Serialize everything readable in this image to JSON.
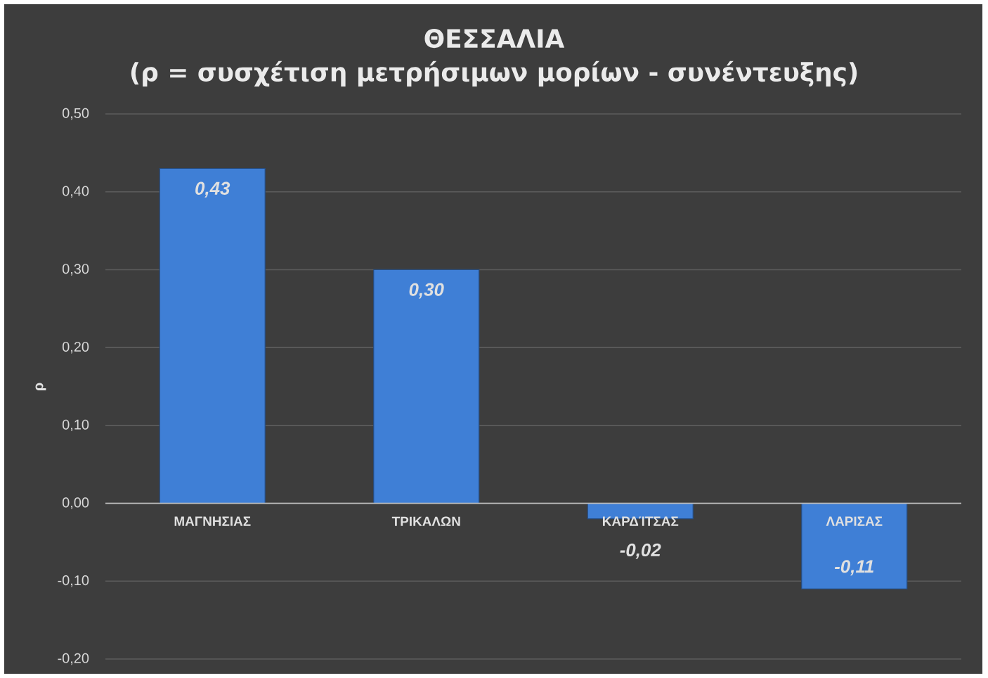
{
  "chart_data": {
    "type": "bar",
    "title": "ΘΕΣΣΑΛΙΑ",
    "subtitle": "(ρ = συσχέτιση μετρήσιμων μορίων - συνέντευξης)",
    "ylabel": "ρ",
    "categories": [
      "ΜΑΓΝΗΣΙΑΣ",
      "ΤΡΙΚΑΛΩΝ",
      "ΚΑΡΔΊΤΣΑΣ",
      "ΛΑΡΙΣΑΣ"
    ],
    "values": [
      0.43,
      0.3,
      -0.02,
      -0.11
    ],
    "value_labels": [
      "0,43",
      "0,30",
      "-0,02",
      "-0,11"
    ],
    "color": "#3f7fd6",
    "ylim": [
      -0.2,
      0.5
    ],
    "yticks": [
      {
        "value": -0.2,
        "label": "-0,20"
      },
      {
        "value": -0.1,
        "label": "-0,10"
      },
      {
        "value": 0,
        "label": "0,00"
      },
      {
        "value": 0.1,
        "label": "0,10"
      },
      {
        "value": 0.2,
        "label": "0,20"
      },
      {
        "value": 0.3,
        "label": "0,30"
      },
      {
        "value": 0.4,
        "label": "0,40"
      },
      {
        "value": 0.5,
        "label": "0,50"
      }
    ],
    "grid": "y"
  }
}
